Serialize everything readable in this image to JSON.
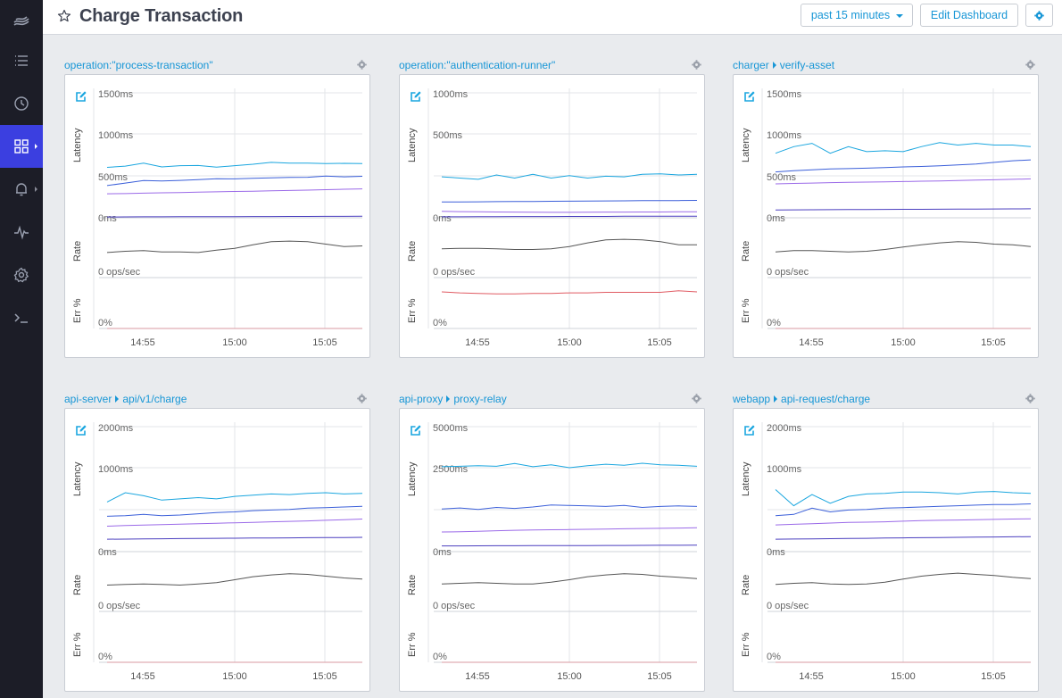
{
  "header": {
    "title": "Charge Transaction",
    "time_range": "past 15 minutes",
    "edit_label": "Edit Dashboard"
  },
  "sidebar": {
    "items": [
      {
        "icon": "logo-icon"
      },
      {
        "icon": "list-icon"
      },
      {
        "icon": "clock-icon"
      },
      {
        "icon": "dashboard-grid-icon",
        "active": true
      },
      {
        "icon": "bell-icon"
      },
      {
        "icon": "pulse-icon"
      },
      {
        "icon": "settings-icon"
      },
      {
        "icon": "terminal-icon"
      }
    ]
  },
  "colors": {
    "p99": "#1aa6df",
    "p95": "#3b5fd9",
    "p75": "#9b6ae8",
    "p50": "#4b3fbf",
    "rate": "#555555",
    "err_nonzero": "#e05a62",
    "err_zero": "#d89aa0",
    "accent": "#1796d6",
    "sidebar_active": "#3b3fe0"
  },
  "panels": [
    {
      "title": [
        "operation:\"process-transaction\""
      ],
      "latency_max": "1500ms",
      "latency_mid": "1000ms",
      "latency_low": "500ms",
      "latency_zero": "0ms",
      "rate_zero": "0 ops/sec",
      "err_zero": "0%",
      "y_labels": [
        "Latency",
        "Rate",
        "Err %"
      ],
      "x_ticks": [
        "14:55",
        "15:00",
        "15:05"
      ],
      "chart_data": {
        "type": "line",
        "latency_ylim": [
          0,
          1500
        ],
        "series": [
          {
            "values": [
              610,
              625,
              660,
              615,
              630,
              632,
              612,
              630,
              648,
              670,
              660,
              660,
              655,
              658,
              655
            ]
          },
          {
            "values": [
              390,
              420,
              450,
              445,
              452,
              462,
              472,
              470,
              478,
              482,
              488,
              490,
              505,
              495,
              502
            ]
          },
          {
            "values": [
              290,
              292,
              298,
              302,
              305,
              310,
              314,
              318,
              322,
              326,
              330,
              335,
              340,
              345,
              350
            ]
          },
          {
            "values": [
              10,
              11,
              12,
              12,
              13,
              13,
              14,
              14,
              15,
              15,
              16,
              16,
              17,
              17,
              18
            ]
          }
        ],
        "rate": [
          0.42,
          0.44,
          0.45,
          0.43,
          0.43,
          0.42,
          0.46,
          0.49,
          0.55,
          0.6,
          0.61,
          0.6,
          0.56,
          0.52,
          0.53
        ],
        "err": [
          0.0,
          0.0,
          0.0,
          0.0,
          0.0,
          0.0,
          0.0,
          0.0,
          0.0,
          0.0,
          0.0,
          0.0,
          0.0,
          0.0,
          0.0
        ],
        "err_color": "#d89aa0"
      }
    },
    {
      "title": [
        "operation:\"authentication-runner\""
      ],
      "latency_max": "1000ms",
      "latency_mid": "500ms",
      "latency_low": "",
      "latency_zero": "0ms",
      "rate_zero": "0 ops/sec",
      "err_zero": "0%",
      "y_labels": [
        "Latency",
        "Rate",
        "Err %"
      ],
      "x_ticks": [
        "14:55",
        "15:00",
        "15:05"
      ],
      "chart_data": {
        "type": "line",
        "latency_ylim": [
          0,
          1000
        ],
        "series": [
          {
            "values": [
              330,
              320,
              310,
              345,
              320,
              350,
              320,
              340,
              320,
              335,
              330,
              350,
              355,
              345,
              350
            ]
          },
          {
            "values": [
              128,
              128,
              129,
              130,
              131,
              132,
              133,
              134,
              135,
              136,
              137,
              138,
              139,
              139,
              140
            ]
          },
          {
            "values": [
              52,
              50,
              48,
              47,
              46,
              45,
              44,
              44,
              45,
              46,
              46,
              47,
              47,
              48,
              48
            ]
          },
          {
            "values": [
              8,
              8,
              9,
              9,
              10,
              10,
              10,
              11,
              11,
              11,
              12,
              12,
              12,
              12,
              13
            ]
          }
        ],
        "rate": [
          0.48,
          0.49,
          0.49,
          0.48,
          0.47,
          0.47,
          0.48,
          0.52,
          0.58,
          0.63,
          0.64,
          0.63,
          0.6,
          0.55,
          0.55
        ],
        "err": [
          0.72,
          0.7,
          0.69,
          0.68,
          0.68,
          0.69,
          0.69,
          0.7,
          0.7,
          0.71,
          0.71,
          0.71,
          0.71,
          0.74,
          0.72
        ],
        "err_color": "#e05a62"
      }
    },
    {
      "title": [
        "charger",
        "verify-asset"
      ],
      "latency_max": "1500ms",
      "latency_mid": "1000ms",
      "latency_low": "500ms",
      "latency_zero": "0ms",
      "rate_zero": "0 ops/sec",
      "err_zero": "0%",
      "y_labels": [
        "Latency",
        "Rate",
        "Err %"
      ],
      "x_ticks": [
        "14:55",
        "15:00",
        "15:05"
      ],
      "chart_data": {
        "type": "line",
        "latency_ylim": [
          0,
          1500
        ],
        "series": [
          {
            "values": [
              780,
              860,
              900,
              780,
              860,
              800,
              810,
              800,
              860,
              910,
              880,
              900,
              880,
              880,
              860
            ]
          },
          {
            "values": [
              555,
              570,
              580,
              590,
              595,
              600,
              608,
              615,
              620,
              628,
              640,
              650,
              670,
              690,
              700
            ]
          },
          {
            "values": [
              410,
              415,
              420,
              425,
              428,
              432,
              435,
              438,
              442,
              446,
              450,
              455,
              460,
              465,
              470
            ]
          },
          {
            "values": [
              95,
              96,
              97,
              98,
              99,
              100,
              101,
              102,
              103,
              104,
              105,
              106,
              107,
              108,
              109
            ]
          }
        ],
        "rate": [
          0.43,
          0.45,
          0.45,
          0.44,
          0.43,
          0.44,
          0.47,
          0.51,
          0.55,
          0.58,
          0.6,
          0.59,
          0.56,
          0.55,
          0.52
        ],
        "err": [
          0.0,
          0.0,
          0.0,
          0.0,
          0.0,
          0.0,
          0.0,
          0.0,
          0.0,
          0.0,
          0.0,
          0.0,
          0.0,
          0.0,
          0.0
        ],
        "err_color": "#d89aa0"
      }
    },
    {
      "title": [
        "api-server",
        "api/v1/charge"
      ],
      "latency_max": "2000ms",
      "latency_mid": "1000ms",
      "latency_low": "",
      "latency_zero": "0ms",
      "rate_zero": "0 ops/sec",
      "err_zero": "0%",
      "y_labels": [
        "Latency",
        "Rate",
        "Err %"
      ],
      "x_ticks": [
        "14:55",
        "15:00",
        "15:05"
      ],
      "chart_data": {
        "type": "line",
        "latency_ylim": [
          0,
          2000
        ],
        "series": [
          {
            "values": [
              800,
              950,
              900,
              830,
              850,
              870,
              850,
              890,
              910,
              930,
              920,
              940,
              950,
              930,
              940
            ]
          },
          {
            "values": [
              570,
              580,
              600,
              580,
              590,
              610,
              630,
              640,
              660,
              670,
              680,
              700,
              710,
              720,
              730
            ]
          },
          {
            "values": [
              410,
              420,
              428,
              436,
              442,
              450,
              458,
              465,
              472,
              480,
              488,
              495,
              505,
              515,
              525
            ]
          },
          {
            "values": [
              200,
              202,
              205,
              207,
              210,
              212,
              214,
              216,
              218,
              220,
              222,
              224,
              226,
              228,
              230
            ]
          }
        ],
        "rate": [
          0.44,
          0.45,
          0.46,
          0.45,
          0.44,
          0.46,
          0.48,
          0.53,
          0.58,
          0.61,
          0.63,
          0.62,
          0.59,
          0.56,
          0.54
        ],
        "err": [
          0.0,
          0.0,
          0.0,
          0.0,
          0.0,
          0.0,
          0.0,
          0.0,
          0.0,
          0.0,
          0.0,
          0.0,
          0.0,
          0.0,
          0.0
        ],
        "err_color": "#d89aa0"
      }
    },
    {
      "title": [
        "api-proxy",
        "proxy-relay"
      ],
      "latency_max": "5000ms",
      "latency_mid": "2500ms",
      "latency_low": "",
      "latency_zero": "0ms",
      "rate_zero": "0 ops/sec",
      "err_zero": "0%",
      "y_labels": [
        "Latency",
        "Rate",
        "Err %"
      ],
      "x_ticks": [
        "14:55",
        "15:00",
        "15:05"
      ],
      "chart_data": {
        "type": "line",
        "latency_ylim": [
          0,
          5000
        ],
        "series": [
          {
            "values": [
              3420,
              3440,
              3460,
              3440,
              3550,
              3420,
              3500,
              3380,
              3460,
              3520,
              3480,
              3560,
              3500,
              3480,
              3440
            ]
          },
          {
            "values": [
              1720,
              1760,
              1700,
              1780,
              1740,
              1800,
              1880,
              1860,
              1840,
              1820,
              1860,
              1780,
              1820,
              1840,
              1820
            ]
          },
          {
            "values": [
              790,
              800,
              820,
              840,
              860,
              870,
              880,
              890,
              900,
              910,
              920,
              930,
              940,
              950,
              960
            ]
          },
          {
            "values": [
              230,
              232,
              234,
              236,
              238,
              240,
              242,
              244,
              246,
              248,
              250,
              252,
              254,
              256,
              258
            ]
          }
        ],
        "rate": [
          0.46,
          0.47,
          0.48,
          0.47,
          0.46,
          0.46,
          0.49,
          0.53,
          0.58,
          0.61,
          0.63,
          0.62,
          0.59,
          0.57,
          0.55
        ],
        "err": [
          0.0,
          0.0,
          0.0,
          0.0,
          0.0,
          0.0,
          0.0,
          0.0,
          0.0,
          0.0,
          0.0,
          0.0,
          0.0,
          0.0,
          0.0
        ],
        "err_color": "#d89aa0"
      }
    },
    {
      "title": [
        "webapp",
        "api-request/charge"
      ],
      "latency_max": "2000ms",
      "latency_mid": "1000ms",
      "latency_low": "",
      "latency_zero": "0ms",
      "rate_zero": "0 ops/sec",
      "err_zero": "0%",
      "y_labels": [
        "Latency",
        "Rate",
        "Err %"
      ],
      "x_ticks": [
        "14:55",
        "15:00",
        "15:05"
      ],
      "chart_data": {
        "type": "line",
        "latency_ylim": [
          0,
          2000
        ],
        "series": [
          {
            "values": [
              1000,
              740,
              920,
              780,
              890,
              930,
              940,
              960,
              960,
              950,
              930,
              960,
              970,
              950,
              940
            ]
          },
          {
            "values": [
              580,
              600,
              700,
              640,
              670,
              680,
              700,
              710,
              720,
              730,
              740,
              750,
              760,
              760,
              770
            ]
          },
          {
            "values": [
              430,
              440,
              450,
              460,
              470,
              475,
              480,
              490,
              500,
              505,
              510,
              515,
              520,
              525,
              530
            ]
          },
          {
            "values": [
              200,
              203,
              206,
              209,
              212,
              215,
              218,
              221,
              224,
              227,
              230,
              233,
              236,
              239,
              242
            ]
          }
        ],
        "rate": [
          0.45,
          0.47,
          0.48,
          0.46,
          0.45,
          0.46,
          0.49,
          0.54,
          0.59,
          0.62,
          0.64,
          0.62,
          0.6,
          0.57,
          0.55
        ],
        "err": [
          0.0,
          0.0,
          0.0,
          0.0,
          0.0,
          0.0,
          0.0,
          0.0,
          0.0,
          0.0,
          0.0,
          0.0,
          0.0,
          0.0,
          0.0
        ],
        "err_color": "#d89aa0"
      }
    }
  ]
}
